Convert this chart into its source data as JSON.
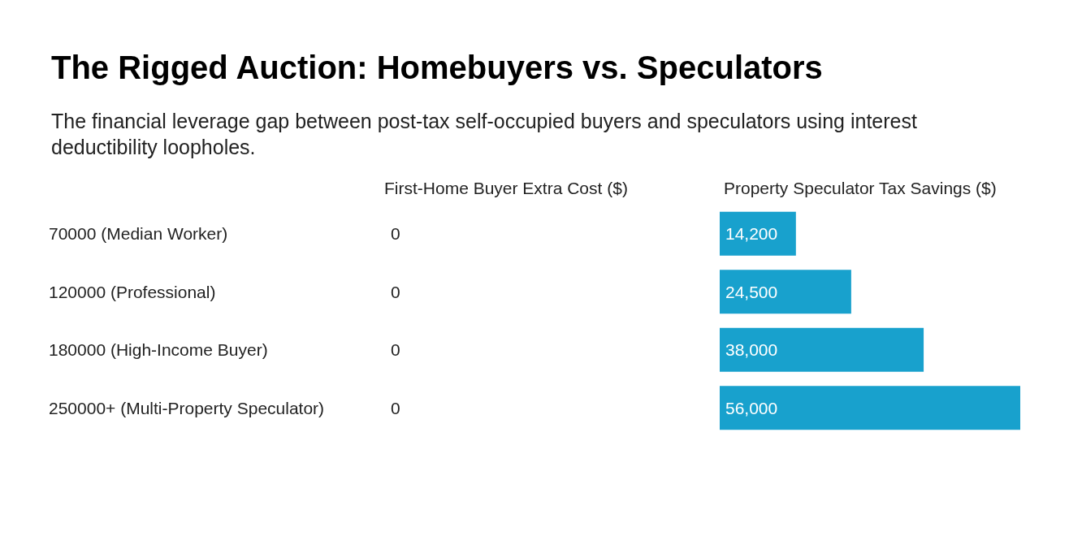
{
  "chart_data": {
    "type": "bar",
    "orientation": "horizontal",
    "title": "The Rigged Auction: Homebuyers vs. Speculators",
    "subtitle": "The financial leverage gap between post-tax self-occupied buyers and speculators using interest deductibility loopholes.",
    "categories": [
      "70000 (Median Worker)",
      "120000 (Professional)",
      "180000 (High-Income Buyer)",
      "250000+ (Multi-Property Speculator)"
    ],
    "series": [
      {
        "name": "First-Home Buyer Extra Cost ($)",
        "values": [
          0,
          0,
          0,
          0
        ],
        "value_labels": [
          "0",
          "0",
          "0",
          "0"
        ]
      },
      {
        "name": "Property Speculator Tax Savings ($)",
        "color": "#18a1cd",
        "values": [
          14200,
          24500,
          38000,
          56000
        ],
        "value_labels": [
          "14,200",
          "24,500",
          "38,000",
          "56,000"
        ]
      }
    ]
  }
}
